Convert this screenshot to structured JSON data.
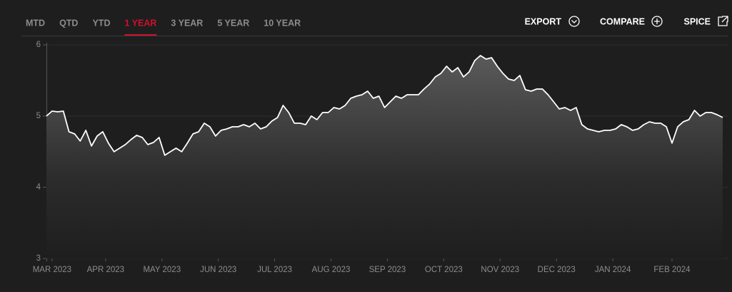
{
  "tabs": [
    "MTD",
    "QTD",
    "YTD",
    "1 YEAR",
    "3 YEAR",
    "5 YEAR",
    "10 YEAR"
  ],
  "selected_tab": 3,
  "actions": [
    "EXPORT",
    "COMPARE",
    "SPICE"
  ],
  "chart_data": {
    "type": "area-line",
    "series": [
      {
        "color": "#ffffff",
        "values": [
          5.0,
          5.07,
          5.06,
          5.07,
          4.78,
          4.75,
          4.65,
          4.8,
          4.58,
          4.72,
          4.78,
          4.62,
          4.5,
          4.55,
          4.6,
          4.67,
          4.73,
          4.7,
          4.6,
          4.63,
          4.7,
          4.45,
          4.5,
          4.55,
          4.5,
          4.62,
          4.75,
          4.78,
          4.9,
          4.85,
          4.72,
          4.8,
          4.82,
          4.85,
          4.85,
          4.88,
          4.85,
          4.9,
          4.82,
          4.85,
          4.93,
          4.98,
          5.15,
          5.05,
          4.9,
          4.9,
          4.88,
          5.0,
          4.95,
          5.05,
          5.05,
          5.12,
          5.1,
          5.15,
          5.25,
          5.28,
          5.3,
          5.35,
          5.25,
          5.28,
          5.12,
          5.2,
          5.28,
          5.25,
          5.3,
          5.3,
          5.3,
          5.38,
          5.45,
          5.55,
          5.6,
          5.7,
          5.62,
          5.68,
          5.55,
          5.62,
          5.78,
          5.85,
          5.8,
          5.82,
          5.7,
          5.6,
          5.52,
          5.5,
          5.57,
          5.37,
          5.35,
          5.38,
          5.38,
          5.3,
          5.2,
          5.1,
          5.12,
          5.08,
          5.12,
          4.88,
          4.82,
          4.8,
          4.78,
          4.8,
          4.8,
          4.82,
          4.88,
          4.85,
          4.8,
          4.82,
          4.88,
          4.92,
          4.9,
          4.9,
          4.85,
          4.62,
          4.85,
          4.92,
          4.95,
          5.08,
          5.0,
          5.05,
          5.05,
          5.02,
          4.98
        ]
      }
    ],
    "xlim": [
      0,
      120
    ],
    "xticks": [
      {
        "value": 1,
        "label": "MAR 2023"
      },
      {
        "value": 10.5,
        "label": "APR 2023"
      },
      {
        "value": 20.5,
        "label": "MAY 2023"
      },
      {
        "value": 30.5,
        "label": "JUN 2023"
      },
      {
        "value": 40.5,
        "label": "JUL 2023"
      },
      {
        "value": 50.5,
        "label": "AUG 2023"
      },
      {
        "value": 60.5,
        "label": "SEP 2023"
      },
      {
        "value": 70.5,
        "label": "OCT 2023"
      },
      {
        "value": 80.5,
        "label": "NOV 2023"
      },
      {
        "value": 90.5,
        "label": "DEC 2023"
      },
      {
        "value": 100.5,
        "label": "JAN 2024"
      },
      {
        "value": 111,
        "label": "FEB 2024"
      }
    ],
    "ylim": [
      3,
      6
    ],
    "yticks": [
      3,
      4,
      5,
      6
    ],
    "grid": true
  }
}
